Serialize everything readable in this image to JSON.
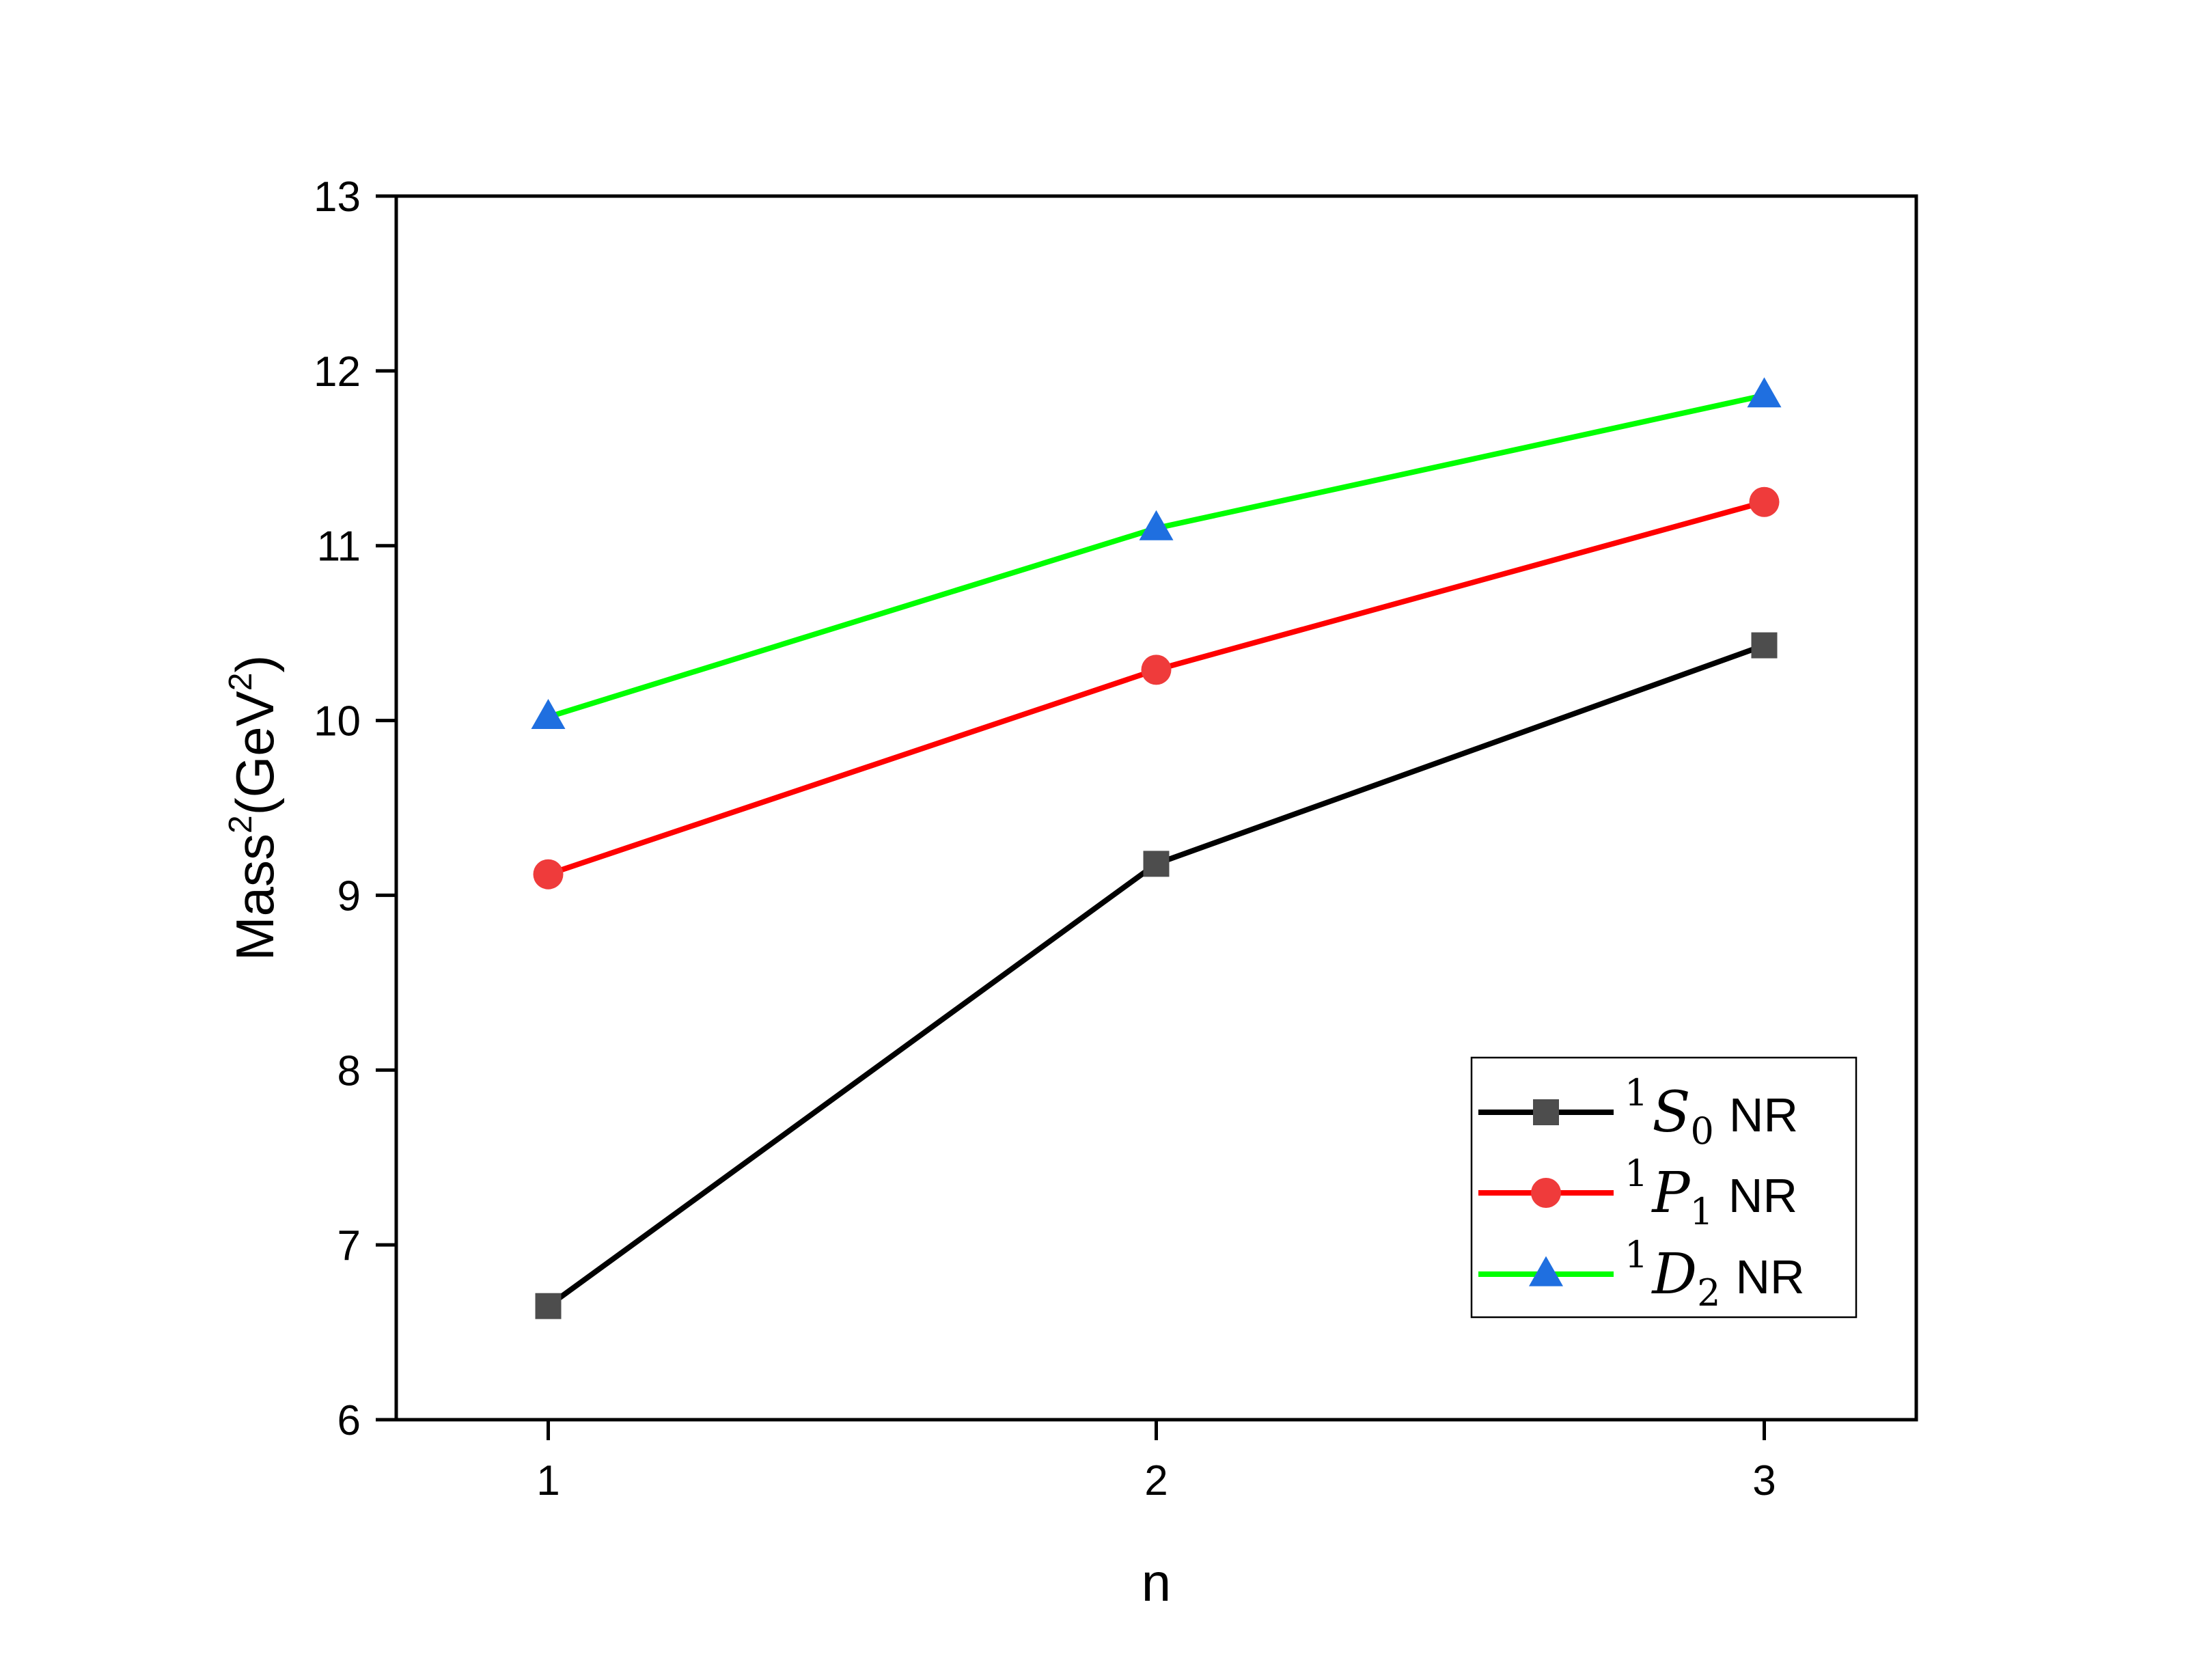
{
  "chart_data": {
    "type": "line",
    "title": "",
    "xlabel": "n",
    "ylabel_main": "Mass",
    "ylabel_sup": "2",
    "ylabel_unit_open": "(GeV",
    "ylabel_unit_sup": "2",
    "ylabel_unit_close": ")",
    "xlim": [
      0.75,
      3.25
    ],
    "ylim": [
      6,
      13
    ],
    "x_ticks": [
      1,
      2,
      3
    ],
    "x_tick_labels": [
      "1",
      "2",
      "3"
    ],
    "y_ticks": [
      6,
      7,
      8,
      9,
      10,
      11,
      12,
      13
    ],
    "y_tick_labels": [
      "6",
      "7",
      "8",
      "9",
      "10",
      "11",
      "12",
      "13"
    ],
    "x": [
      1,
      2,
      3
    ],
    "series": [
      {
        "name": "1S0 NR",
        "label_sup": "1",
        "label_symbol": "S",
        "label_sub": "0",
        "label_suffix": "NR",
        "marker": "square",
        "line_color": "#000000",
        "marker_color": "#4d4d4d",
        "values": [
          6.65,
          9.18,
          10.43
        ]
      },
      {
        "name": "1P1 NR",
        "label_sup": "1",
        "label_symbol": "P",
        "label_sub": "1",
        "label_suffix": "NR",
        "marker": "circle",
        "line_color": "#ff0000",
        "marker_color": "#ef3b3b",
        "values": [
          9.12,
          10.29,
          11.25
        ]
      },
      {
        "name": "1D2 NR",
        "label_sup": "1",
        "label_symbol": "D",
        "label_sub": "2",
        "label_suffix": "NR",
        "marker": "triangle",
        "line_color": "#00ff00",
        "marker_color": "#1f6fe0",
        "values": [
          10.02,
          11.1,
          11.86
        ]
      }
    ],
    "legend_position": "bottom-right",
    "grid": false
  }
}
